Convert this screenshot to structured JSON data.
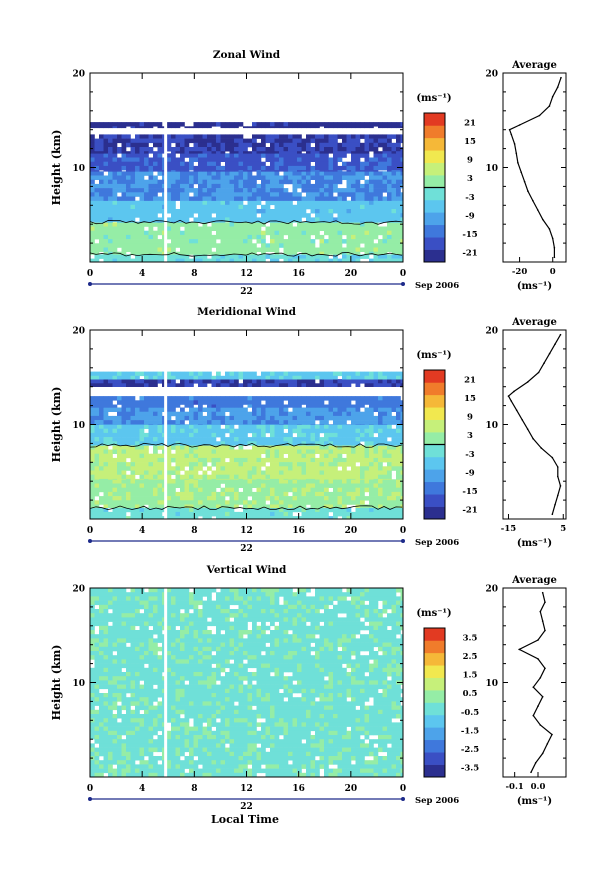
{
  "date_label": "Sep 2006",
  "xlabel": "Local Time",
  "unit_label": "(ms⁻¹)",
  "colors": {
    "scale": [
      "#2b2f8f",
      "#3a4fc4",
      "#3f78dc",
      "#4da3ea",
      "#5cc6ef",
      "#6fe0d8",
      "#95eda6",
      "#c6f07a",
      "#f1e84f",
      "#f5b838",
      "#f07c2b",
      "#e23a22"
    ],
    "zero_contour": "#000000",
    "gap": "#ffffff"
  },
  "chart_data": [
    {
      "id": "zonal",
      "type": "heatmap",
      "title": "Zonal Wind",
      "ylabel": "Height (km)",
      "x_ticks": [
        "0",
        "4",
        "8",
        "12",
        "16",
        "20",
        "0"
      ],
      "xlim": [
        0,
        24
      ],
      "day_label": "22",
      "ylim": [
        0,
        20
      ],
      "y_ticks": [
        "10",
        "20"
      ],
      "colorbar_ticks": [
        "21",
        "15",
        "9",
        "3",
        "-3",
        "-9",
        "-15",
        "-21"
      ],
      "colorbar_range": [
        -24,
        24
      ],
      "layers": [
        {
          "y0": 0.0,
          "y1": 0.8,
          "value": -3
        },
        {
          "y0": 0.8,
          "y1": 4.2,
          "value": 2
        },
        {
          "y0": 4.2,
          "y1": 6.5,
          "value": -6
        },
        {
          "y0": 6.5,
          "y1": 9.6,
          "value": -12
        },
        {
          "y0": 9.6,
          "y1": 11.5,
          "value": -17
        },
        {
          "y0": 11.5,
          "y1": 13.5,
          "value": -20
        },
        {
          "y0": 13.5,
          "y1": 14.2,
          "value": null
        },
        {
          "y0": 14.2,
          "y1": 14.8,
          "value": -22
        },
        {
          "y0": 14.8,
          "y1": 20.0,
          "value": null
        }
      ],
      "average": {
        "xlim": [
          -30,
          8
        ],
        "x_ticks": [
          "-20",
          "0"
        ],
        "heights": [
          0.5,
          1.5,
          2.5,
          3.5,
          4.5,
          5.5,
          6.5,
          7.5,
          8.5,
          9.5,
          10.5,
          11.5,
          12.5,
          13.5,
          14.0,
          14.5,
          15.5,
          16.5,
          17.5,
          18.5,
          19.5
        ],
        "values": [
          1,
          1,
          0,
          -2,
          -6,
          -9,
          -12,
          -15,
          -17,
          -19,
          -21,
          -22,
          -23,
          -25,
          -26,
          -20,
          -8,
          -2,
          0,
          3,
          5
        ]
      }
    },
    {
      "id": "meridional",
      "type": "heatmap",
      "title": "Meridional Wind",
      "ylabel": "Height (km)",
      "x_ticks": [
        "0",
        "4",
        "8",
        "12",
        "16",
        "20",
        "0"
      ],
      "xlim": [
        0,
        24
      ],
      "day_label": "22",
      "ylim": [
        0,
        20
      ],
      "y_ticks": [
        "10",
        "20"
      ],
      "colorbar_ticks": [
        "21",
        "15",
        "9",
        "3",
        "-3",
        "-9",
        "-15",
        "-21"
      ],
      "colorbar_range": [
        -24,
        24
      ],
      "layers": [
        {
          "y0": 0.0,
          "y1": 1.2,
          "value": -2
        },
        {
          "y0": 1.2,
          "y1": 4.2,
          "value": 3
        },
        {
          "y0": 4.2,
          "y1": 7.8,
          "value": 5
        },
        {
          "y0": 7.8,
          "y1": 10.0,
          "value": -5
        },
        {
          "y0": 10.0,
          "y1": 11.8,
          "value": -11
        },
        {
          "y0": 11.8,
          "y1": 13.0,
          "value": -14
        },
        {
          "y0": 13.0,
          "y1": 14.0,
          "value": null
        },
        {
          "y0": 14.0,
          "y1": 14.8,
          "value": -20
        },
        {
          "y0": 14.8,
          "y1": 15.6,
          "value": -5
        },
        {
          "y0": 15.6,
          "y1": 20.0,
          "value": null
        }
      ],
      "average": {
        "xlim": [
          -17,
          6
        ],
        "x_ticks": [
          "-15",
          "5"
        ],
        "heights": [
          0.5,
          1.5,
          2.5,
          3.5,
          4.5,
          5.5,
          6.5,
          7.5,
          8.5,
          9.5,
          10.5,
          11.5,
          12.5,
          13.0,
          13.5,
          14.5,
          15.5,
          16.5,
          17.5,
          18.5,
          19.5
        ],
        "values": [
          1,
          2,
          3,
          4,
          3,
          3,
          1,
          -3,
          -6,
          -8,
          -10,
          -12,
          -14,
          -15,
          -13,
          -8,
          -4,
          -2,
          0,
          2,
          4
        ]
      }
    },
    {
      "id": "vertical",
      "type": "heatmap",
      "title": "Vertical Wind",
      "ylabel": "Height (km)",
      "x_ticks": [
        "0",
        "4",
        "8",
        "12",
        "16",
        "20",
        "0"
      ],
      "xlim": [
        0,
        24
      ],
      "day_label": "22",
      "ylim": [
        0,
        20
      ],
      "y_ticks": [
        "10",
        "20"
      ],
      "colorbar_ticks": [
        "3.5",
        "2.5",
        "1.5",
        "0.5",
        "-0.5",
        "-1.5",
        "-2.5",
        "-3.5"
      ],
      "colorbar_range": [
        -4,
        4
      ],
      "layers": [
        {
          "y0": 0.0,
          "y1": 20.0,
          "value": -0.2
        }
      ],
      "average": {
        "xlim": [
          -0.15,
          0.12
        ],
        "x_ticks": [
          "-0.1",
          "0.0"
        ],
        "heights": [
          0.5,
          1.5,
          2.5,
          3.5,
          4.5,
          5.5,
          6.5,
          7.5,
          8.5,
          9.5,
          10.5,
          11.5,
          12.5,
          13.5,
          14.5,
          15.5,
          16.5,
          17.5,
          18.5,
          19.5
        ],
        "values": [
          -0.03,
          -0.01,
          0.02,
          0.04,
          0.06,
          0.01,
          -0.02,
          0.0,
          0.02,
          -0.02,
          0.01,
          0.03,
          0.0,
          -0.08,
          0.0,
          0.03,
          0.02,
          0.01,
          0.03,
          0.02
        ]
      }
    }
  ]
}
